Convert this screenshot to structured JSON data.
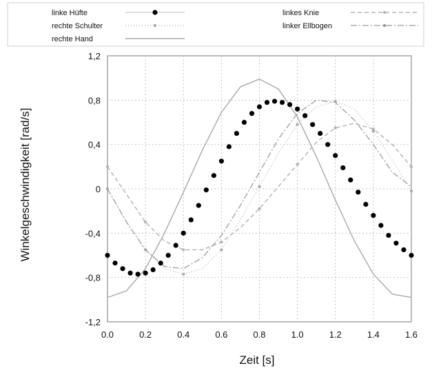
{
  "chart_data": {
    "type": "line",
    "xlabel": "Zeit [s]",
    "ylabel": "Winkelgeschwindigkeit [rad/s]",
    "xlim": [
      0.0,
      1.6
    ],
    "ylim": [
      -1.2,
      1.2
    ],
    "xticks": [
      {
        "value": 0.0,
        "label": "0.0"
      },
      {
        "value": 0.2,
        "label": "0.2"
      },
      {
        "value": 0.4,
        "label": "0.4"
      },
      {
        "value": 0.6,
        "label": "0.6"
      },
      {
        "value": 0.8,
        "label": "0.8"
      },
      {
        "value": 1.0,
        "label": "1.0"
      },
      {
        "value": 1.2,
        "label": "1.2"
      },
      {
        "value": 1.4,
        "label": "1.4"
      },
      {
        "value": 1.6,
        "label": "1.6"
      }
    ],
    "yticks": [
      {
        "value": 1.2,
        "label": "1,2"
      },
      {
        "value": 0.8,
        "label": "0,8"
      },
      {
        "value": 0.4,
        "label": "0,4"
      },
      {
        "value": 0.0,
        "label": "0"
      },
      {
        "value": -0.4,
        "label": "-0,4"
      },
      {
        "value": -0.8,
        "label": "-0,8"
      },
      {
        "value": -1.2,
        "label": "-1,2"
      }
    ],
    "grid": true,
    "legend_position": "top",
    "series": [
      {
        "name": "linke Hüfte",
        "color": "#000000",
        "style": "dots",
        "x": [
          0.0,
          0.04,
          0.08,
          0.12,
          0.16,
          0.2,
          0.24,
          0.28,
          0.32,
          0.36,
          0.4,
          0.44,
          0.48,
          0.52,
          0.56,
          0.6,
          0.64,
          0.68,
          0.72,
          0.76,
          0.8,
          0.84,
          0.88,
          0.92,
          0.96,
          1.0,
          1.04,
          1.08,
          1.12,
          1.16,
          1.2,
          1.24,
          1.28,
          1.32,
          1.36,
          1.4,
          1.44,
          1.48,
          1.52,
          1.56,
          1.6
        ],
        "y": [
          -0.6,
          -0.67,
          -0.72,
          -0.76,
          -0.77,
          -0.76,
          -0.73,
          -0.67,
          -0.6,
          -0.51,
          -0.4,
          -0.28,
          -0.15,
          -0.01,
          0.12,
          0.25,
          0.38,
          0.5,
          0.6,
          0.68,
          0.74,
          0.78,
          0.79,
          0.78,
          0.76,
          0.72,
          0.66,
          0.58,
          0.5,
          0.4,
          0.3,
          0.19,
          0.08,
          -0.03,
          -0.14,
          -0.24,
          -0.33,
          -0.42,
          -0.49,
          -0.55,
          -0.6
        ]
      },
      {
        "name": "rechte Schulter",
        "color": "#aaaaaa",
        "style": "dotted-markers",
        "x": [
          0.0,
          0.1,
          0.2,
          0.3,
          0.4,
          0.5,
          0.6,
          0.7,
          0.8,
          0.9,
          1.0,
          1.1,
          1.2,
          1.3,
          1.4,
          1.5,
          1.6
        ],
        "y": [
          0.0,
          -0.3,
          -0.55,
          -0.72,
          -0.77,
          -0.72,
          -0.55,
          -0.28,
          0.02,
          0.32,
          0.58,
          0.74,
          0.79,
          0.72,
          0.52,
          0.26,
          -0.02
        ]
      },
      {
        "name": "rechte Hand",
        "color": "#a8a8a8",
        "style": "solid",
        "x": [
          0.0,
          0.1,
          0.2,
          0.3,
          0.4,
          0.5,
          0.6,
          0.7,
          0.8,
          0.9,
          1.0,
          1.1,
          1.2,
          1.3,
          1.4,
          1.5,
          1.6
        ],
        "y": [
          -0.98,
          -0.92,
          -0.72,
          -0.4,
          -0.03,
          0.35,
          0.69,
          0.92,
          0.99,
          0.9,
          0.65,
          0.29,
          -0.1,
          -0.47,
          -0.77,
          -0.95,
          -0.98
        ]
      },
      {
        "name": "linkes Knie",
        "color": "#b5b5b5",
        "style": "dashed-markers",
        "x": [
          0.0,
          0.1,
          0.2,
          0.3,
          0.4,
          0.5,
          0.6,
          0.7,
          0.8,
          0.9,
          1.0,
          1.1,
          1.2,
          1.3,
          1.4,
          1.5,
          1.6
        ],
        "y": [
          0.2,
          -0.05,
          -0.3,
          -0.47,
          -0.55,
          -0.55,
          -0.48,
          -0.35,
          -0.18,
          0.02,
          0.22,
          0.42,
          0.55,
          0.59,
          0.54,
          0.4,
          0.2
        ]
      },
      {
        "name": "linker Ellbogen",
        "color": "#9c9c9c",
        "style": "dashdot",
        "x": [
          0.0,
          0.1,
          0.2,
          0.3,
          0.4,
          0.5,
          0.6,
          0.7,
          0.8,
          0.9,
          1.0,
          1.1,
          1.2,
          1.3,
          1.4,
          1.5,
          1.6
        ],
        "y": [
          0.0,
          -0.3,
          -0.55,
          -0.7,
          -0.72,
          -0.62,
          -0.42,
          -0.15,
          0.15,
          0.45,
          0.68,
          0.8,
          0.78,
          0.62,
          0.4,
          0.15,
          0.02
        ]
      }
    ]
  }
}
